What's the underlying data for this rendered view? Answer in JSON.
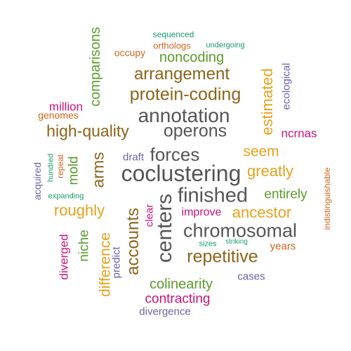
{
  "palette": {
    "dark_gray": "#555555",
    "brown": "#8c6418",
    "gold": "#e6a21a",
    "green": "#5a9c2c",
    "orange": "#d0651c",
    "magenta": "#d0127a",
    "purple": "#6a62a8",
    "teal": "#1a9a70"
  },
  "words": [
    {
      "text": "coclustering",
      "color": "#555555"
    },
    {
      "text": "annotation",
      "color": "#555555"
    },
    {
      "text": "finished",
      "color": "#555555"
    },
    {
      "text": "chromosomal",
      "color": "#555555"
    },
    {
      "text": "centers",
      "color": "#555555"
    },
    {
      "text": "operons",
      "color": "#555555"
    },
    {
      "text": "forces",
      "color": "#555555"
    },
    {
      "text": "protein-coding",
      "color": "#8c6418"
    },
    {
      "text": "arrangement",
      "color": "#8c6418"
    },
    {
      "text": "high-quality",
      "color": "#8c6418"
    },
    {
      "text": "repetitive",
      "color": "#8c6418"
    },
    {
      "text": "accounts",
      "color": "#8c6418"
    },
    {
      "text": "arms",
      "color": "#8c6418"
    },
    {
      "text": "seem",
      "color": "#e6a21a"
    },
    {
      "text": "greatly",
      "color": "#e6a21a"
    },
    {
      "text": "ancestor",
      "color": "#e6a21a"
    },
    {
      "text": "roughly",
      "color": "#e6a21a"
    },
    {
      "text": "estimated",
      "color": "#e6a21a"
    },
    {
      "text": "difference",
      "color": "#e6a21a"
    },
    {
      "text": "noncoding",
      "color": "#5a9c2c"
    },
    {
      "text": "comparisons",
      "color": "#5a9c2c"
    },
    {
      "text": "colinearity",
      "color": "#5a9c2c"
    },
    {
      "text": "entirely",
      "color": "#5a9c2c"
    },
    {
      "text": "mold",
      "color": "#5a9c2c"
    },
    {
      "text": "niche",
      "color": "#5a9c2c"
    },
    {
      "text": "contracting",
      "color": "#d0127a"
    },
    {
      "text": "ncrnas",
      "color": "#d0127a"
    },
    {
      "text": "million",
      "color": "#d0127a"
    },
    {
      "text": "improve",
      "color": "#d0127a"
    },
    {
      "text": "diverged",
      "color": "#d0127a"
    },
    {
      "text": "clear",
      "color": "#d0127a"
    },
    {
      "text": "years",
      "color": "#d0651c"
    },
    {
      "text": "genomes",
      "color": "#d0651c"
    },
    {
      "text": "occupy",
      "color": "#d0651c"
    },
    {
      "text": "orthologs",
      "color": "#d0651c"
    },
    {
      "text": "repeat",
      "color": "#d0651c"
    },
    {
      "text": "indistinguishable",
      "color": "#d0651c"
    },
    {
      "text": "draft",
      "color": "#6a62a8"
    },
    {
      "text": "cases",
      "color": "#6a62a8"
    },
    {
      "text": "divergence",
      "color": "#6a62a8"
    },
    {
      "text": "ecological",
      "color": "#6a62a8"
    },
    {
      "text": "acquired",
      "color": "#6a62a8"
    },
    {
      "text": "predict",
      "color": "#6a62a8"
    },
    {
      "text": "sequenced",
      "color": "#1a9a70"
    },
    {
      "text": "undergoing",
      "color": "#1a9a70"
    },
    {
      "text": "expanding",
      "color": "#1a9a70"
    },
    {
      "text": "hundred",
      "color": "#1a9a70"
    },
    {
      "text": "sizes",
      "color": "#1a9a70"
    },
    {
      "text": "striking",
      "color": "#1a9a70"
    }
  ]
}
